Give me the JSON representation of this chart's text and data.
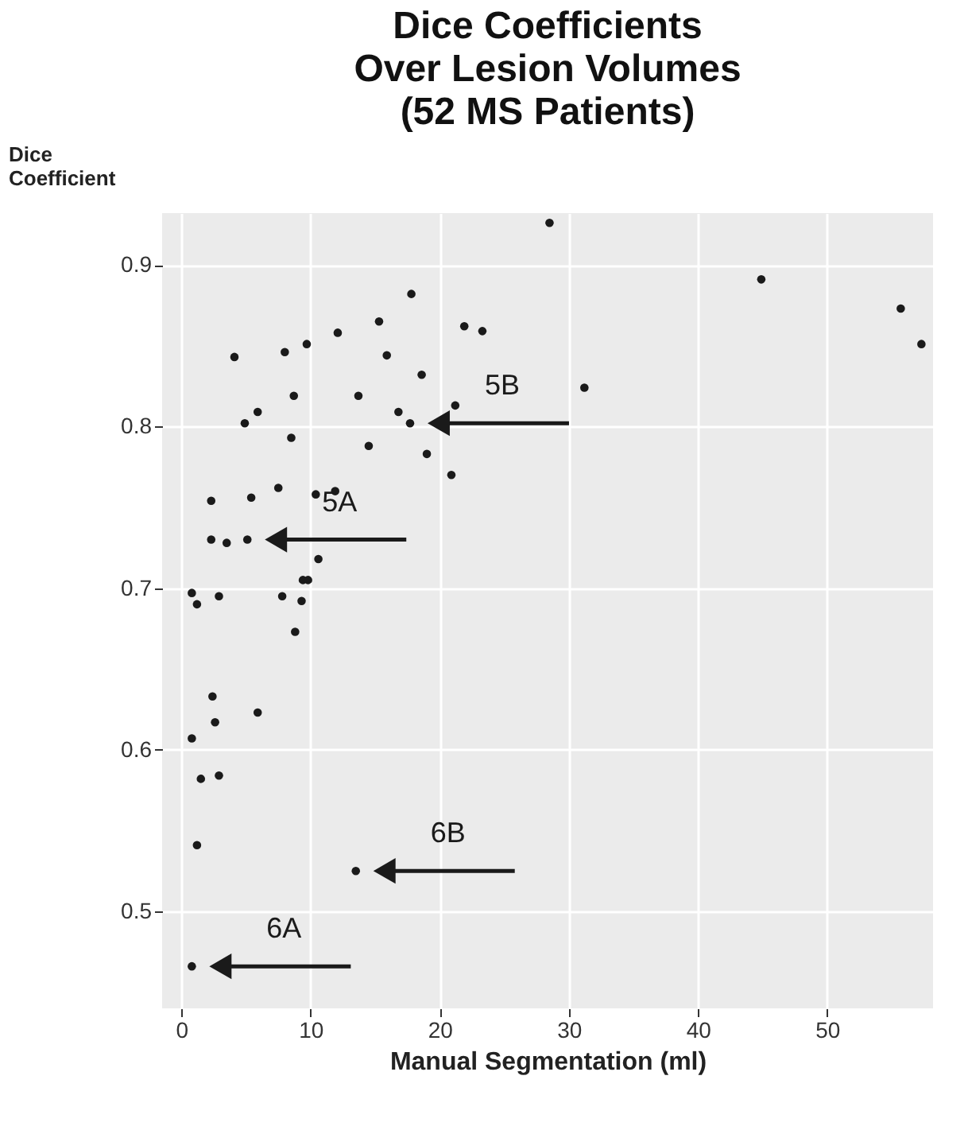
{
  "chart_data": {
    "type": "scatter",
    "title": "Dice Coefficients\nOver Lesion Volumes\n(52 MS Patients)",
    "xlabel": "Manual Segmentation (ml)",
    "ylabel": "Dice\nCoefficient",
    "x": [
      17.8,
      15.3,
      21.9,
      23.3,
      12.1,
      9.7,
      8.0,
      4.1,
      15.9,
      18.6,
      8.7,
      13.7,
      21.2,
      5.9,
      16.8,
      4.9,
      17.7,
      8.5,
      14.5,
      19.0,
      20.9,
      7.5,
      11.9,
      2.3,
      5.4,
      10.4,
      2.3,
      3.5,
      5.1,
      10.6,
      9.4,
      9.8,
      0.8,
      2.9,
      7.8,
      9.3,
      1.2,
      8.8,
      2.4,
      5.9,
      2.6,
      0.8,
      2.9,
      1.5,
      1.2,
      13.5,
      0.8,
      28.5,
      44.9,
      55.7,
      57.3,
      31.2
    ],
    "values": [
      0.882,
      0.865,
      0.862,
      0.859,
      0.858,
      0.851,
      0.846,
      0.843,
      0.844,
      0.832,
      0.819,
      0.819,
      0.813,
      0.809,
      0.809,
      0.802,
      0.802,
      0.793,
      0.788,
      0.783,
      0.77,
      0.762,
      0.76,
      0.754,
      0.756,
      0.758,
      0.73,
      0.728,
      0.73,
      0.718,
      0.705,
      0.705,
      0.697,
      0.695,
      0.695,
      0.692,
      0.69,
      0.673,
      0.633,
      0.623,
      0.617,
      0.607,
      0.584,
      0.582,
      0.541,
      0.525,
      0.466,
      0.926,
      0.891,
      0.873,
      0.851,
      0.824
    ],
    "color": "#1a1a1a",
    "xlim": [
      -1.5,
      58.2
    ],
    "ylim": [
      0.44,
      0.932
    ],
    "xticks": [
      0,
      10,
      20,
      30,
      40,
      50
    ],
    "yticks": [
      0.5,
      0.6,
      0.7,
      0.8,
      0.9
    ],
    "grid": true,
    "annotations": [
      {
        "text": "5B",
        "x": 17.7,
        "y": 0.802
      },
      {
        "text": "5A",
        "x": 5.1,
        "y": 0.73
      },
      {
        "text": "6B",
        "x": 13.5,
        "y": 0.525
      },
      {
        "text": "6A",
        "x": 0.8,
        "y": 0.466
      }
    ]
  }
}
